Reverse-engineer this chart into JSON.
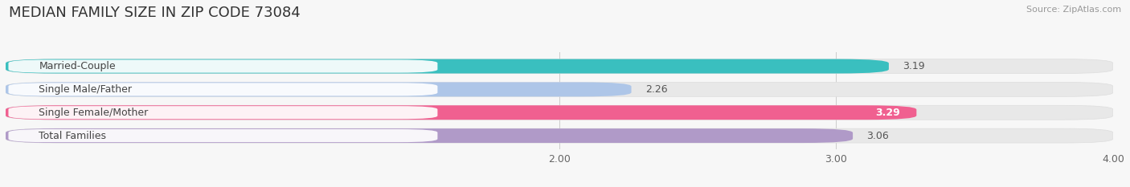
{
  "title": "MEDIAN FAMILY SIZE IN ZIP CODE 73084",
  "source": "Source: ZipAtlas.com",
  "categories": [
    "Married-Couple",
    "Single Male/Father",
    "Single Female/Mother",
    "Total Families"
  ],
  "values": [
    3.19,
    2.26,
    3.29,
    3.06
  ],
  "bar_colors": [
    "#3abfbf",
    "#aec6e8",
    "#f06090",
    "#b09ac8"
  ],
  "bar_bg_color": "#e8e8e8",
  "xlim_min": 0.0,
  "xlim_max": 4.0,
  "xticks": [
    2.0,
    3.0,
    4.0
  ],
  "xtick_labels": [
    "2.00",
    "3.00",
    "4.00"
  ],
  "value_labels": [
    "3.19",
    "2.26",
    "3.29",
    "3.06"
  ],
  "value_label_inside": [
    false,
    false,
    true,
    false
  ],
  "background_color": "#f7f7f7",
  "fig_background": "#f7f7f7",
  "title_fontsize": 13,
  "label_fontsize": 9,
  "value_fontsize": 9,
  "tick_fontsize": 9,
  "bar_height": 0.62,
  "bar_gap": 0.38
}
